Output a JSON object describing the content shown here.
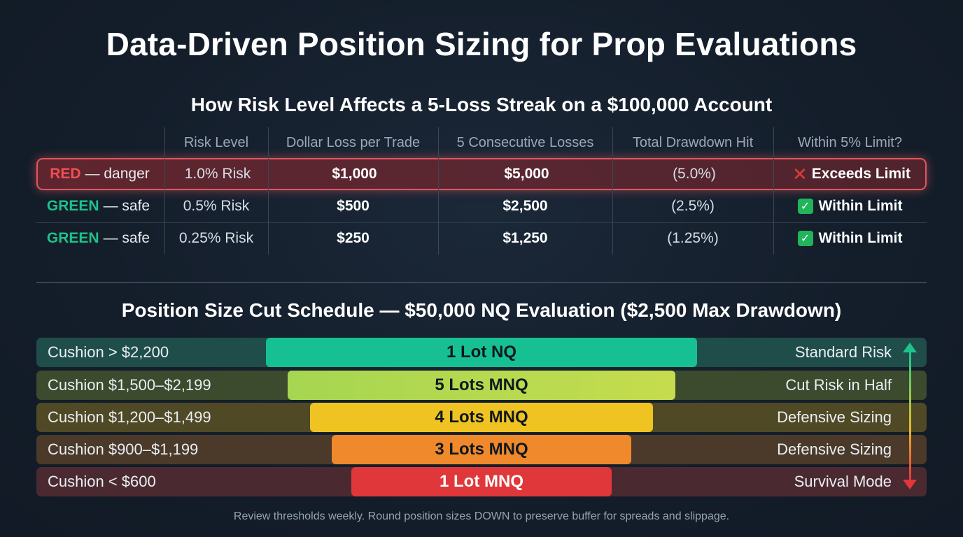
{
  "title": "Data-Driven Position Sizing for Prop Evaluations",
  "risk_table": {
    "title": "How Risk Level Affects a 5-Loss Streak on a $100,000 Account",
    "headers": [
      "Risk Level",
      "Dollar Loss per Trade",
      "5 Consecutive Losses",
      "Total Drawdown Hit",
      "Within 5% Limit?"
    ],
    "rows": [
      {
        "tag": "RED",
        "tag_suffix": "— danger",
        "risk": "1.0% Risk",
        "loss": "$1,000",
        "five_losses": "$5,000",
        "drawdown": "(5.0%)",
        "status": "Exceeds Limit",
        "status_icon": "cross-icon"
      },
      {
        "tag": "GREEN",
        "tag_suffix": "— safe",
        "risk": "0.5% Risk",
        "loss": "$500",
        "five_losses": "$2,500",
        "drawdown": "(2.5%)",
        "status": "Within Limit",
        "status_icon": "check-icon"
      },
      {
        "tag": "GREEN",
        "tag_suffix": "— safe",
        "risk": "0.25% Risk",
        "loss": "$250",
        "five_losses": "$1,250",
        "drawdown": "(1.25%)",
        "status": "Within Limit",
        "status_icon": "check-icon"
      }
    ]
  },
  "schedule": {
    "title": "Position Size Cut Schedule — $50,000 NQ Evaluation ($2,500 Max Drawdown)",
    "tiers": [
      {
        "cushion": "Cushion > $2,200",
        "size": "1 Lot NQ",
        "mode": "Standard Risk",
        "color": "#16c093"
      },
      {
        "cushion": "Cushion $1,500–$2,199",
        "size": "5 Lots MNQ",
        "mode": "Cut Risk in Half",
        "color": "#b5d84f"
      },
      {
        "cushion": "Cushion $1,200–$1,499",
        "size": "4 Lots MNQ",
        "mode": "Defensive Sizing",
        "color": "#efc321"
      },
      {
        "cushion": "Cushion $900–$1,199",
        "size": "3 Lots MNQ",
        "mode": "Defensive Sizing",
        "color": "#f0892c"
      },
      {
        "cushion": "Cushion < $600",
        "size": "1 Lot MNQ",
        "mode": "Survival Mode",
        "color": "#e0373b"
      }
    ]
  },
  "footer": "Review thresholds weekly. Round position sizes DOWN to preserve buffer for spreads and slippage."
}
